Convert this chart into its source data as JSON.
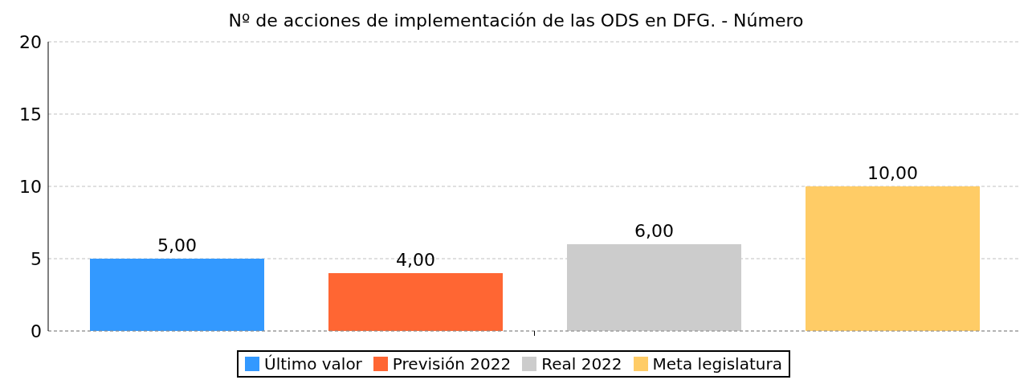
{
  "chart_data": {
    "type": "bar",
    "title": "Nº de acciones de implementación de las ODS en DFG. - Número",
    "categories": [
      null
    ],
    "series": [
      {
        "name": "Último valor",
        "color": "#3399ff",
        "values": [
          5
        ],
        "value_labels": [
          "5,00"
        ]
      },
      {
        "name": "Previsión 2022",
        "color": "#ff6633",
        "values": [
          4
        ],
        "value_labels": [
          "4,00"
        ]
      },
      {
        "name": "Real 2022",
        "color": "#cccccc",
        "values": [
          6
        ],
        "value_labels": [
          "6,00"
        ]
      },
      {
        "name": "Meta legislatura",
        "color": "#ffcc66",
        "values": [
          10
        ],
        "value_labels": [
          "10,00"
        ]
      }
    ],
    "ylim": [
      0,
      20
    ],
    "yticks": [
      0,
      5,
      10,
      15,
      20
    ],
    "grid": "y",
    "legend": "bottom"
  }
}
